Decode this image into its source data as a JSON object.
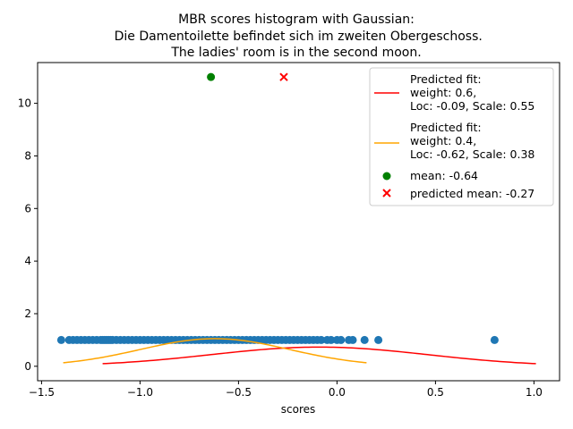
{
  "chart_data": {
    "type": "scatter",
    "title_lines": [
      "MBR scores histogram with Gaussian:",
      " Die Damentoilette befindet sich im zweiten Obergeschoss.",
      "The ladies' room is in the second moon."
    ],
    "xlabel": "scores",
    "ylabel": "",
    "xlim": [
      -1.52,
      1.13
    ],
    "ylim": [
      -0.55,
      11.55
    ],
    "xticks": [
      -1.5,
      -1.0,
      -0.5,
      0.0,
      0.5,
      1.0
    ],
    "xtick_labels": [
      "−1.5",
      "−1.0",
      "−0.5",
      "0.0",
      "0.5",
      "1.0"
    ],
    "yticks": [
      0,
      2,
      4,
      6,
      8,
      10
    ],
    "ytick_labels": [
      "0",
      "2",
      "4",
      "6",
      "8",
      "10"
    ],
    "grid": false,
    "legend_position": "top-right",
    "colors": {
      "scores": "#1f77b4",
      "fit1": "#ff0000",
      "fit2": "#ffa500",
      "mean": "#008000",
      "predicted_mean": "#ff0000"
    },
    "scores_y": 1,
    "scores_x": [
      -1.4,
      -1.36,
      -1.34,
      -1.32,
      -1.3,
      -1.28,
      -1.26,
      -1.24,
      -1.22,
      -1.2,
      -1.19,
      -1.18,
      -1.17,
      -1.16,
      -1.15,
      -1.14,
      -1.12,
      -1.1,
      -1.08,
      -1.06,
      -1.04,
      -1.02,
      -1.0,
      -0.98,
      -0.96,
      -0.94,
      -0.92,
      -0.9,
      -0.88,
      -0.86,
      -0.84,
      -0.82,
      -0.8,
      -0.78,
      -0.76,
      -0.74,
      -0.72,
      -0.7,
      -0.68,
      -0.66,
      -0.64,
      -0.62,
      -0.6,
      -0.58,
      -0.56,
      -0.54,
      -0.52,
      -0.5,
      -0.48,
      -0.46,
      -0.44,
      -0.42,
      -0.4,
      -0.38,
      -0.36,
      -0.34,
      -0.32,
      -0.3,
      -0.28,
      -0.26,
      -0.24,
      -0.22,
      -0.2,
      -0.18,
      -0.16,
      -0.14,
      -0.12,
      -0.1,
      -0.08,
      -0.05,
      -0.03,
      0.0,
      0.02,
      0.06,
      0.08,
      0.14,
      0.21,
      0.8
    ],
    "fits": [
      {
        "name": "Predicted fit:\nweight: 0.6,\nLoc: -0.09, Scale: 0.55",
        "loc": -0.09,
        "scale": 0.55,
        "peak": 0.73,
        "x_range": [
          -1.19,
          1.01
        ]
      },
      {
        "name": "Predicted fit:\nweight: 0.4,\nLoc: -0.62, Scale: 0.38",
        "loc": -0.62,
        "scale": 0.38,
        "peak": 1.05,
        "x_range": [
          -1.39,
          0.15
        ]
      }
    ],
    "mean": {
      "x": -0.64,
      "y": 11,
      "label": "mean: -0.64"
    },
    "predicted_mean": {
      "x": -0.27,
      "y": 11,
      "label": "predicted mean: -0.27"
    }
  }
}
